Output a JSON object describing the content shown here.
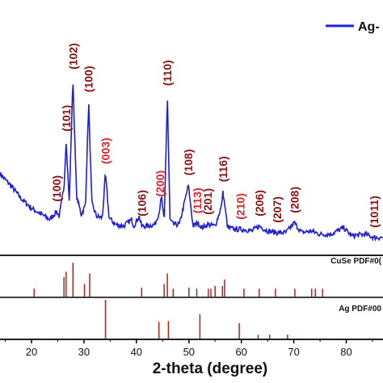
{
  "chart_data": [
    {
      "type": "line",
      "xlabel": "2-theta (degree)",
      "xlim": [
        14,
        87
      ],
      "x_ticks": [
        20,
        30,
        40,
        50,
        60,
        70,
        80
      ],
      "legend": {
        "label": "Ag-",
        "position": "top-right",
        "color": "#1f1fd6"
      },
      "series": [
        {
          "name": "Ag-",
          "color": "#1f1fd6",
          "x": [
            14,
            16,
            18,
            20,
            22,
            23.5,
            24.8,
            25.3,
            26.2,
            26.6,
            27.2,
            27.9,
            28.6,
            29.5,
            30.3,
            30.9,
            31.5,
            32.4,
            33.5,
            34.1,
            34.8,
            36,
            37.5,
            39.1,
            39.5,
            40.5,
            41.0,
            42,
            43.5,
            44.3,
            44.8,
            45.3,
            45.9,
            46.4,
            47,
            48.2,
            49.9,
            50.8,
            51.7,
            52.5,
            53.6,
            55,
            56.2,
            56.5,
            57.4,
            59,
            60.5,
            62,
            63.4,
            65,
            66.8,
            68.5,
            70.1,
            71.5,
            73.3,
            75,
            77,
            79.5,
            81,
            83.5,
            85.3,
            87
          ],
          "values": [
            42,
            35,
            27,
            21,
            17,
            14,
            19,
            16,
            34,
            62,
            25,
            100,
            28,
            17,
            23,
            86,
            24,
            16,
            15,
            42,
            15,
            11,
            10,
            14,
            10,
            16,
            10,
            10,
            11,
            18,
            28,
            12,
            90,
            14,
            11,
            11,
            35,
            10,
            12,
            9,
            11,
            10,
            22,
            31,
            9,
            8,
            8,
            7,
            10,
            7,
            6,
            6,
            12,
            6,
            7,
            5,
            5,
            9,
            4,
            5,
            3,
            3
          ]
        }
      ],
      "peak_labels": [
        {
          "text": "(100)",
          "x": 24.8,
          "color": "#8b1010"
        },
        {
          "text": "(101)",
          "x": 26.6,
          "color": "#8b1010"
        },
        {
          "text": "(102)",
          "x": 27.9,
          "color": "#8b1010"
        },
        {
          "text": "(100)",
          "x": 30.9,
          "color": "#8b1010"
        },
        {
          "text": "(003)",
          "x": 34.1,
          "color": "#e0242b"
        },
        {
          "text": "(106)",
          "x": 41.0,
          "color": "#8b1010"
        },
        {
          "text": "(200)",
          "x": 44.5,
          "color": "#e0242b"
        },
        {
          "text": "(110)",
          "x": 45.9,
          "color": "#8b1010"
        },
        {
          "text": "(108)",
          "x": 49.9,
          "color": "#8b1010"
        },
        {
          "text": "(113)",
          "x": 51.6,
          "color": "#e0242b"
        },
        {
          "text": "(201)",
          "x": 53.6,
          "color": "#8b1010"
        },
        {
          "text": "(116)",
          "x": 56.5,
          "color": "#8b1010"
        },
        {
          "text": "(210)",
          "x": 59.8,
          "color": "#e0242b"
        },
        {
          "text": "(206)",
          "x": 63.4,
          "color": "#8b1010"
        },
        {
          "text": "(207)",
          "x": 66.8,
          "color": "#8b1010"
        },
        {
          "text": "(208)",
          "x": 70.1,
          "color": "#8b1010"
        },
        {
          "text": "(1011)",
          "x": 85.3,
          "color": "#8b1010"
        }
      ]
    },
    {
      "type": "bar",
      "label": "CuSe PDF#0(",
      "color": "#b8211a",
      "x": [
        20.5,
        26.2,
        26.6,
        27.9,
        30.1,
        31.1,
        41.0,
        45.3,
        45.9,
        47.0,
        50.0,
        51.5,
        53.7,
        54.2,
        55.0,
        56.4,
        56.8,
        60.5,
        63.4,
        66.5,
        70.2,
        73.4,
        74.1,
        75.5
      ],
      "values": [
        0.22,
        0.55,
        0.7,
        0.95,
        0.35,
        0.65,
        0.25,
        0.35,
        0.65,
        0.22,
        0.25,
        0.22,
        0.22,
        0.22,
        0.3,
        0.3,
        0.48,
        0.22,
        0.22,
        0.22,
        0.22,
        0.22,
        0.22,
        0.22
      ]
    },
    {
      "type": "bar",
      "label": "Ag PDF#00",
      "color": "#b8211a",
      "x": [
        34.1,
        44.3,
        46.1,
        52.1,
        59.6,
        63.2,
        65.4,
        68.8
      ],
      "values": [
        1.0,
        0.43,
        0.45,
        0.63,
        0.4,
        0.1,
        0.1,
        0.1
      ]
    }
  ]
}
